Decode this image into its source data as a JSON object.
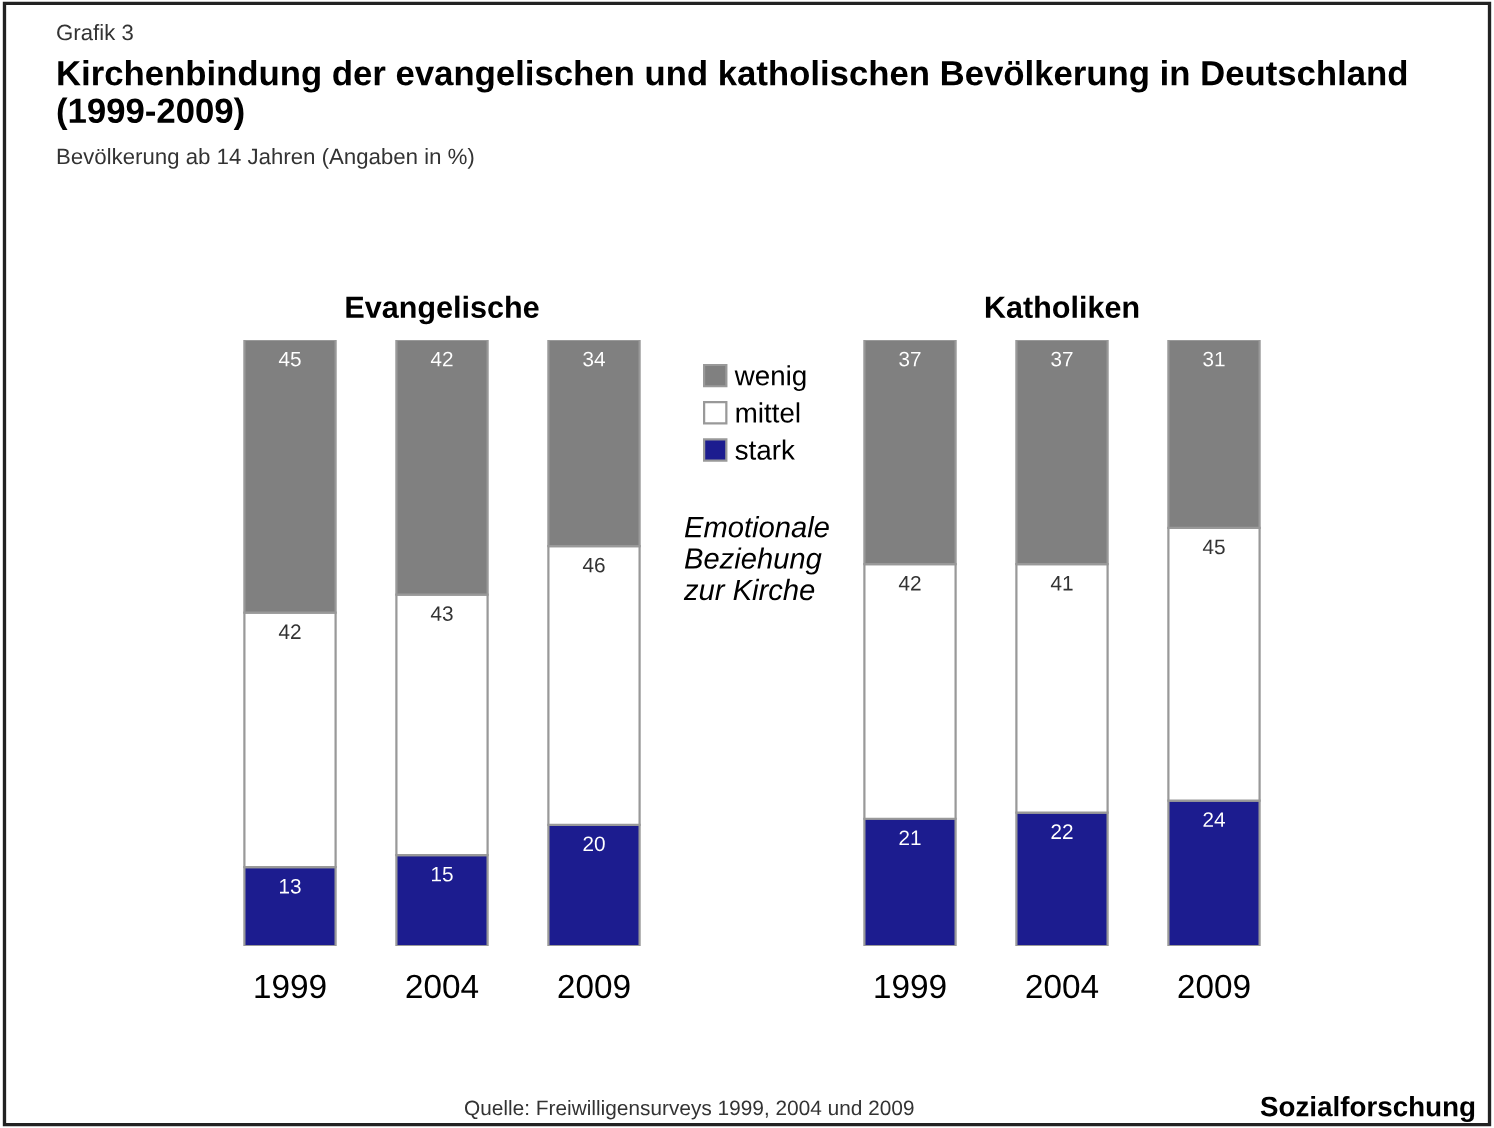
{
  "chart_data": [
    {
      "type": "bar",
      "stacked": true,
      "title": "Evangelische",
      "categories": [
        "1999",
        "2004",
        "2009"
      ],
      "series": [
        {
          "name": "stark",
          "color": "#1c1c8f",
          "values": [
            13,
            15,
            20
          ]
        },
        {
          "name": "mittel",
          "color": "#ffffff",
          "values": [
            42,
            43,
            46
          ]
        },
        {
          "name": "wenig",
          "color": "#808080",
          "values": [
            45,
            42,
            34
          ]
        }
      ],
      "data_labels": true,
      "legend": "right",
      "legend_title": "Emotionale Beziehung zur Kirche",
      "grid": false,
      "tick_labels": "x",
      "annotations": [
        "Grafik 3",
        "Kirchenbindung der evangelischen und katholischen Bevölkerung in Deutschland (1999-2009)",
        "Bevölkerung ab 14 Jahren (Angaben in %)",
        "Quelle: Freiwilligensurveys 1999, 2004 und 2009",
        "Sozialforschung"
      ]
    },
    {
      "type": "bar",
      "stacked": true,
      "title": "Katholiken",
      "categories": [
        "1999",
        "2004",
        "2009"
      ],
      "series": [
        {
          "color": "#1c1c8f",
          "values": [
            21,
            22,
            24
          ]
        },
        {
          "color": "#ffffff",
          "values": [
            42,
            41,
            45
          ]
        },
        {
          "color": "#808080",
          "values": [
            37,
            37,
            31
          ]
        }
      ],
      "data_labels": true,
      "grid": false,
      "tick_labels": "x"
    }
  ]
}
